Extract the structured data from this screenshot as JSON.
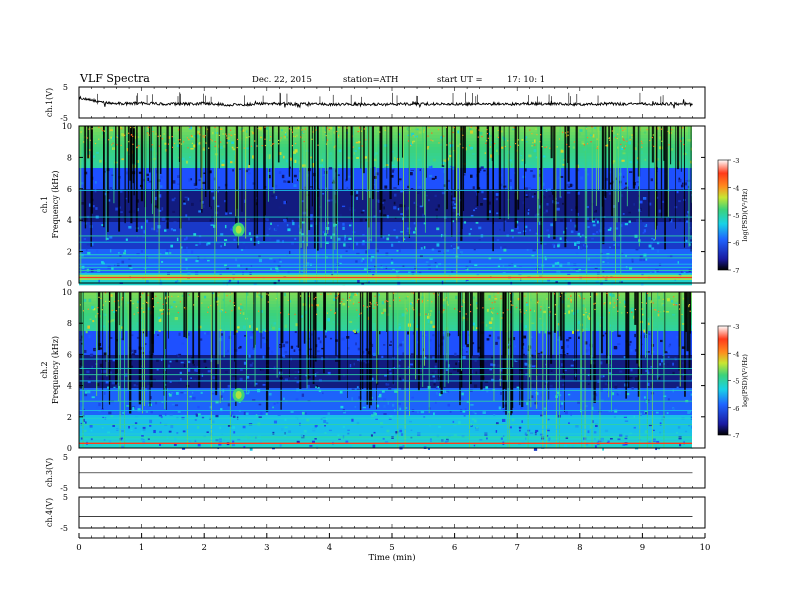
{
  "header": {
    "title": "VLF Spectra",
    "date": "Dec. 22, 2015",
    "station": "station=ATH",
    "start_ut": "start UT =",
    "start_time": "17: 10: 1"
  },
  "chart_data": [
    {
      "type": "line",
      "name": "ch1-waveform",
      "ylabel": "ch.1(V)",
      "ylim": [
        -5,
        5
      ],
      "yticks": [
        "5",
        "-5"
      ],
      "xlim": [
        0,
        10
      ],
      "x": [
        0.0,
        0.5,
        1.0,
        1.5,
        2.0,
        2.5,
        3.0,
        3.5,
        4.0,
        4.5,
        5.0,
        5.5,
        6.0,
        6.5,
        7.0,
        7.5,
        8.0,
        8.5,
        9.0,
        9.5,
        9.8
      ],
      "y": [
        1.6,
        -0.4,
        -0.2,
        -0.5,
        -0.3,
        -0.8,
        -0.4,
        -0.5,
        -0.6,
        -0.5,
        -0.6,
        -0.4,
        -0.6,
        -0.4,
        -0.5,
        -0.4,
        -0.6,
        -0.4,
        -0.5,
        -0.4,
        -0.6
      ]
    },
    {
      "type": "heatmap",
      "name": "ch1-spectrogram",
      "ylabel_top": "ch.1",
      "ylabel": "Frequency (kHz)",
      "ylim": [
        0,
        10
      ],
      "yticks": [
        "10",
        "8",
        "6",
        "4",
        "2",
        "0"
      ],
      "xlim": [
        0,
        10
      ],
      "colorbar": {
        "label": "log(PSD)(V²/Hz)",
        "range": [
          -7,
          -3
        ],
        "ticks": [
          "-3",
          "-4",
          "-5",
          "-6",
          "-7"
        ]
      }
    },
    {
      "type": "heatmap",
      "name": "ch2-spectrogram",
      "ylabel_top": "ch.2",
      "ylabel": "Frequency (kHz)",
      "ylim": [
        0,
        10
      ],
      "yticks": [
        "10",
        "8",
        "6",
        "4",
        "2",
        "0"
      ],
      "xlim": [
        0,
        10
      ],
      "colorbar": {
        "label": "log(PSD)(V²/Hz)",
        "range": [
          -7,
          -3
        ],
        "ticks": [
          "-3",
          "-4",
          "-5",
          "-6",
          "-7"
        ]
      }
    },
    {
      "type": "line",
      "name": "ch3-waveform",
      "ylabel": "ch.3(V)",
      "ylim": [
        -5,
        5
      ],
      "yticks": [
        "5",
        "-5"
      ],
      "xlim": [
        0,
        10
      ],
      "x": [
        0,
        10
      ],
      "y": [
        -0.1,
        -0.1
      ]
    },
    {
      "type": "line",
      "name": "ch4-waveform",
      "ylabel": "ch.4(V)",
      "ylim": [
        -5,
        5
      ],
      "yticks": [
        "5",
        "-5"
      ],
      "xlim": [
        0,
        10
      ],
      "x": [
        0,
        10
      ],
      "y": [
        -1.3,
        -1.3
      ]
    }
  ],
  "xaxis": {
    "label": "Time (min)",
    "ticks": [
      "0",
      "1",
      "2",
      "3",
      "4",
      "5",
      "6",
      "7",
      "8",
      "9",
      "10"
    ]
  },
  "colors": {
    "frame": "#000000",
    "spectrum_low": "#000000",
    "spectrum_mid": "#1a3cc8",
    "spectrum_high": "#3cd27a",
    "spectrum_peak": "#ff3b1a"
  }
}
